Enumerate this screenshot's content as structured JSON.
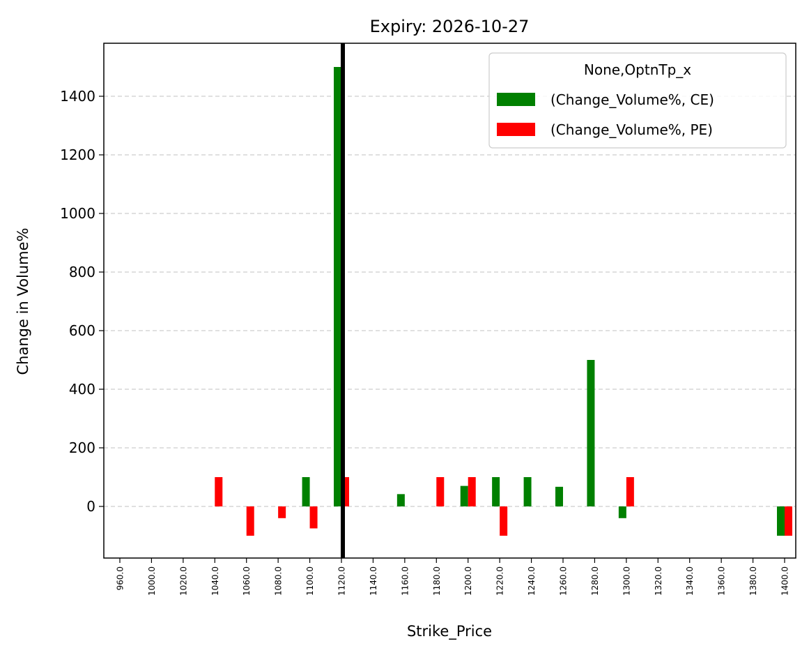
{
  "chart_data": {
    "type": "bar",
    "title": "Expiry: 2026-10-27",
    "xlabel": "Strike_Price",
    "ylabel": "Change in Volume%",
    "categories": [
      "960.0",
      "1000.0",
      "1020.0",
      "1040.0",
      "1060.0",
      "1080.0",
      "1100.0",
      "1120.0",
      "1140.0",
      "1160.0",
      "1180.0",
      "1200.0",
      "1220.0",
      "1240.0",
      "1260.0",
      "1280.0",
      "1300.0",
      "1320.0",
      "1340.0",
      "1360.0",
      "1380.0",
      "1400.0"
    ],
    "series": [
      {
        "name": "(Change_Volume%, CE)",
        "color": "#008000",
        "values": [
          0,
          0,
          0,
          0,
          0,
          0,
          100,
          1500,
          0,
          42,
          0,
          70,
          100,
          100,
          67,
          500,
          -40,
          0,
          0,
          0,
          0,
          -100
        ]
      },
      {
        "name": "(Change_Volume%, PE)",
        "color": "#ff0000",
        "values": [
          0,
          0,
          0,
          100,
          -100,
          -40,
          -75,
          100,
          0,
          0,
          100,
          100,
          -100,
          0,
          0,
          0,
          100,
          0,
          0,
          0,
          0,
          -100
        ]
      }
    ],
    "ylim": [
      -180,
      1580
    ],
    "yticks": [
      0,
      200,
      400,
      600,
      800,
      1000,
      1200,
      1400
    ],
    "grid": "y-dashed",
    "legend_title": "None,OptnTp_x",
    "legend_position": "top-right",
    "reference_line_strike": "1120.0"
  }
}
